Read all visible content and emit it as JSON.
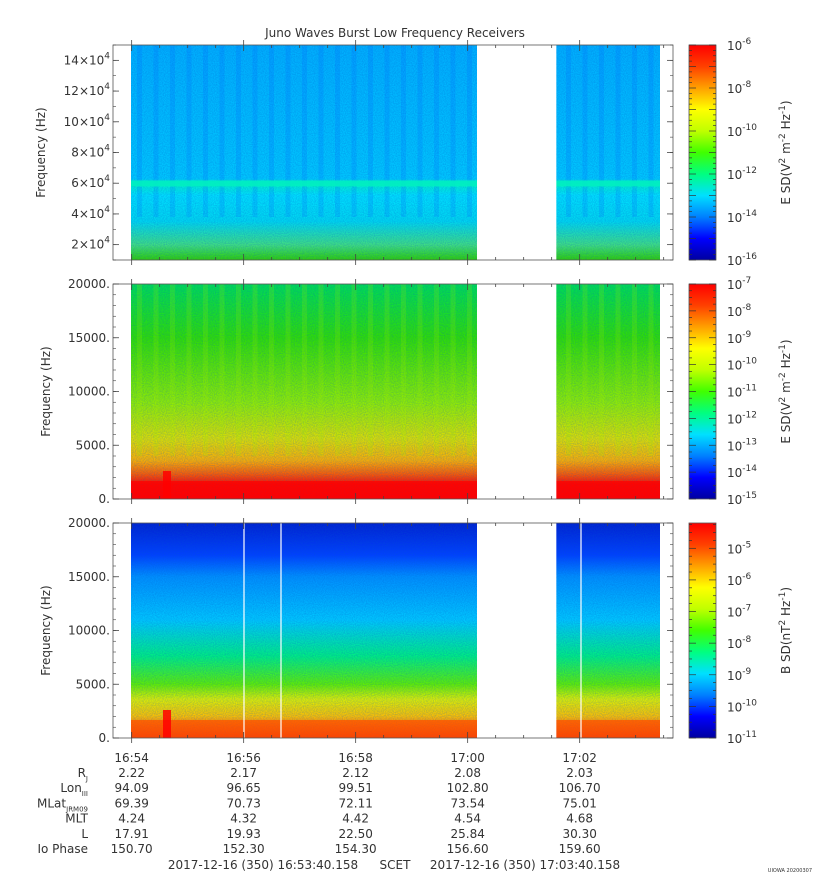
{
  "title": "Juno Waves Burst Low Frequency Receivers",
  "footer": {
    "start": "2017-12-16 (350) 16:53:40.158",
    "scet": "SCET",
    "end": "2017-12-16 (350) 17:03:40.158",
    "credit": "UIOWA 20200307"
  },
  "time_ticks": [
    "16:54",
    "16:56",
    "16:58",
    "17:00",
    "17:02"
  ],
  "ephemeris": [
    {
      "label": "R",
      "sub": "J",
      "values": [
        "2.22",
        "2.17",
        "2.12",
        "2.08",
        "2.03"
      ]
    },
    {
      "label": "Lon",
      "sub": "III",
      "values": [
        "94.09",
        "96.65",
        "99.51",
        "102.80",
        "106.70"
      ]
    },
    {
      "label": "MLat",
      "sub": "JRM09",
      "values": [
        "69.39",
        "70.73",
        "72.11",
        "73.54",
        "75.01"
      ]
    },
    {
      "label": "MLT",
      "sub": "",
      "values": [
        "4.24",
        "4.32",
        "4.42",
        "4.54",
        "4.68"
      ]
    },
    {
      "label": "L",
      "sub": "",
      "values": [
        "17.91",
        "19.93",
        "22.50",
        "25.84",
        "30.30"
      ]
    },
    {
      "label": "Io Phase",
      "sub": "",
      "values": [
        "150.70",
        "152.30",
        "154.30",
        "156.60",
        "159.60"
      ]
    }
  ],
  "colors": {
    "colormap": [
      "#0000a0",
      "#0000ff",
      "#0080ff",
      "#00e0ff",
      "#00ff80",
      "#40ff00",
      "#c0ff00",
      "#ffff00",
      "#ffa000",
      "#ff4000",
      "#ff0000"
    ],
    "gap": "#ffffff"
  },
  "chart_data": [
    {
      "type": "heatmap",
      "title": "Juno Waves Burst Low Frequency Receivers",
      "ylabel": "Frequency (Hz)",
      "xlim": [
        "16:53:40",
        "17:03:40"
      ],
      "ylim": [
        10000,
        150000
      ],
      "yticks": [
        {
          "base": "2×10",
          "exp": "4",
          "value": 20000
        },
        {
          "base": "4×10",
          "exp": "4",
          "value": 40000
        },
        {
          "base": "6×10",
          "exp": "4",
          "value": 60000
        },
        {
          "base": "8×10",
          "exp": "4",
          "value": 80000
        },
        {
          "base": "10×10",
          "exp": "4",
          "value": 100000
        },
        {
          "base": "12×10",
          "exp": "4",
          "value": 120000
        },
        {
          "base": "14×10",
          "exp": "4",
          "value": 140000
        }
      ],
      "colorbar_label": {
        "pre": "E SD(V",
        "sup1": "2",
        "mid": " m",
        "sup2": "-2",
        "mid2": " Hz",
        "sup3": "-1",
        "post": ")"
      },
      "colorbar_range": [
        -16,
        -6
      ],
      "colorbar_ticks": [
        {
          "base": "10",
          "exp": "-6",
          "value": -6
        },
        {
          "base": "10",
          "exp": "-8",
          "value": -8
        },
        {
          "base": "10",
          "exp": "-10",
          "value": -10
        },
        {
          "base": "10",
          "exp": "-12",
          "value": -12
        },
        {
          "base": "10",
          "exp": "-14",
          "value": -14
        },
        {
          "base": "10",
          "exp": "-16",
          "value": -16
        }
      ],
      "data_gap": [
        "17:00:10",
        "17:01:35"
      ]
    },
    {
      "type": "heatmap",
      "ylabel": "Frequency (Hz)",
      "xlim": [
        "16:53:40",
        "17:03:40"
      ],
      "ylim": [
        0,
        20000
      ],
      "yticks": [
        {
          "base": "0.",
          "exp": "",
          "value": 0
        },
        {
          "base": "5000.",
          "exp": "",
          "value": 5000
        },
        {
          "base": "10000.",
          "exp": "",
          "value": 10000
        },
        {
          "base": "15000.",
          "exp": "",
          "value": 15000
        },
        {
          "base": "20000.",
          "exp": "",
          "value": 20000
        }
      ],
      "colorbar_label": {
        "pre": "E SD(V",
        "sup1": "2",
        "mid": " m",
        "sup2": "-2",
        "mid2": " Hz",
        "sup3": "-1",
        "post": ")"
      },
      "colorbar_range": [
        -15,
        -7
      ],
      "colorbar_ticks": [
        {
          "base": "10",
          "exp": "-7",
          "value": -7
        },
        {
          "base": "10",
          "exp": "-8",
          "value": -8
        },
        {
          "base": "10",
          "exp": "-9",
          "value": -9
        },
        {
          "base": "10",
          "exp": "-10",
          "value": -10
        },
        {
          "base": "10",
          "exp": "-11",
          "value": -11
        },
        {
          "base": "10",
          "exp": "-12",
          "value": -12
        },
        {
          "base": "10",
          "exp": "-13",
          "value": -13
        },
        {
          "base": "10",
          "exp": "-14",
          "value": -14
        },
        {
          "base": "10",
          "exp": "-15",
          "value": -15
        }
      ],
      "data_gap": [
        "17:00:10",
        "17:01:35"
      ]
    },
    {
      "type": "heatmap",
      "ylabel": "Frequency (Hz)",
      "xlim": [
        "16:53:40",
        "17:03:40"
      ],
      "ylim": [
        0,
        20000
      ],
      "yticks": [
        {
          "base": "0.",
          "exp": "",
          "value": 0
        },
        {
          "base": "5000.",
          "exp": "",
          "value": 5000
        },
        {
          "base": "10000.",
          "exp": "",
          "value": 10000
        },
        {
          "base": "15000.",
          "exp": "",
          "value": 15000
        },
        {
          "base": "20000.",
          "exp": "",
          "value": 20000
        }
      ],
      "colorbar_label": {
        "pre": "B SD(nT",
        "sup1": "2",
        "mid": " Hz",
        "sup2": "-1",
        "mid2": "",
        "sup3": "",
        "post": ")"
      },
      "colorbar_range": [
        -11,
        -4.2
      ],
      "colorbar_ticks": [
        {
          "base": "10",
          "exp": "-5",
          "value": -5
        },
        {
          "base": "10",
          "exp": "-6",
          "value": -6
        },
        {
          "base": "10",
          "exp": "-7",
          "value": -7
        },
        {
          "base": "10",
          "exp": "-8",
          "value": -8
        },
        {
          "base": "10",
          "exp": "-9",
          "value": -9
        },
        {
          "base": "10",
          "exp": "-10",
          "value": -10
        },
        {
          "base": "10",
          "exp": "-11",
          "value": -11
        }
      ],
      "data_gap": [
        "17:00:10",
        "17:01:35"
      ]
    }
  ]
}
